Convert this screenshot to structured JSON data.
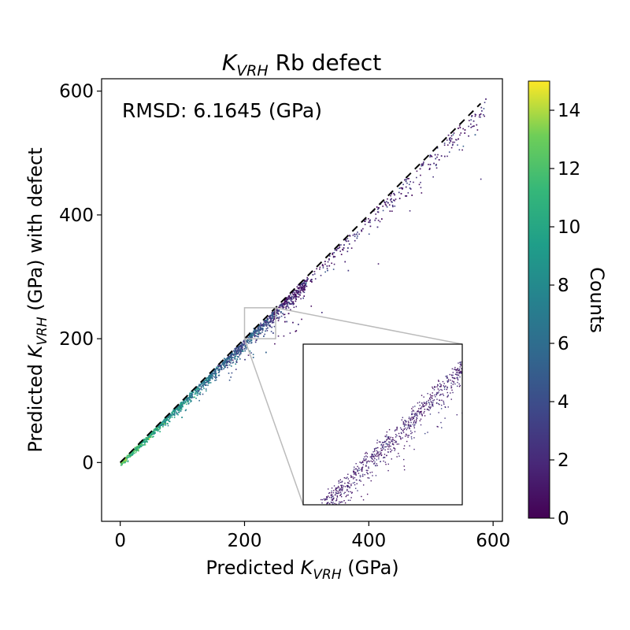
{
  "chart_data": {
    "type": "heatmap",
    "subtype": "2d-histogram-scatter",
    "title": {
      "main": "K",
      "sub": "VRH",
      "rest": " Rb defect"
    },
    "xlabel": {
      "pre": "Predicted ",
      "main": "K",
      "sub": "VRH",
      "post": " (GPa)"
    },
    "ylabel": {
      "pre": "Predicted ",
      "main": "K",
      "sub": "VRH",
      "post": " (GPa) with defect"
    },
    "annotation": "RMSD: 6.1645 (GPa)",
    "xlim": [
      -30,
      615
    ],
    "ylim": [
      -95,
      620
    ],
    "xticks": [
      0,
      200,
      400,
      600
    ],
    "yticks": [
      0,
      200,
      400,
      600
    ],
    "reference_line": {
      "style": "dashed",
      "color": "#000000",
      "from": [
        0,
        0
      ],
      "to": [
        580,
        580
      ]
    },
    "colorbar": {
      "label": "Counts",
      "min": 0,
      "max": 15,
      "ticks": [
        0,
        2,
        4,
        6,
        8,
        10,
        12,
        14
      ],
      "colormap": "viridis"
    },
    "inset": {
      "xlim": [
        200,
        250
      ],
      "ylim": [
        200,
        250
      ]
    },
    "colors": {
      "axis": "#000000",
      "zoom_box": "#bbbbbb"
    }
  }
}
